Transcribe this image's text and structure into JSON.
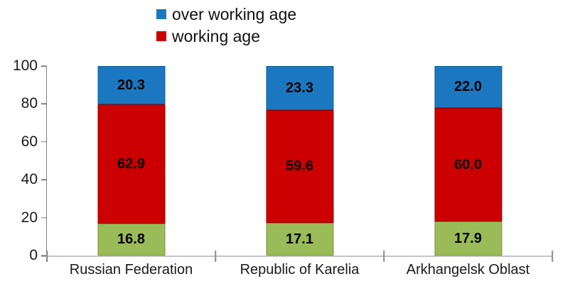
{
  "chart_data": {
    "type": "bar",
    "stacked": true,
    "title": "",
    "xlabel": "",
    "ylabel": "",
    "ylim": [
      0,
      100
    ],
    "yticks": [
      0,
      20,
      40,
      60,
      80,
      100
    ],
    "grid": false,
    "legend_position": "top",
    "categories": [
      "Russian Federation",
      "Republic of Karelia",
      "Arkhangelsk Oblast"
    ],
    "series": [
      {
        "name": "",
        "color": "#9bbb59",
        "border_color": "#77923f",
        "values": [
          16.8,
          17.1,
          17.9
        ],
        "labels": [
          "16.8",
          "17.1",
          "17.9"
        ]
      },
      {
        "name": "working age",
        "color": "#cc0000",
        "border_color": "#960000",
        "values": [
          62.9,
          59.6,
          60.0
        ],
        "labels": [
          "62.9",
          "59.6",
          "60.0"
        ]
      },
      {
        "name": "over working age",
        "color": "#1b78c0",
        "border_color": "#145a91",
        "values": [
          20.3,
          23.3,
          22.0
        ],
        "labels": [
          "20.3",
          "23.3",
          "22.0"
        ]
      }
    ],
    "legend": {
      "entries": [
        {
          "label": "over working age",
          "color": "#1b78c0"
        },
        {
          "label": "working age",
          "color": "#cc0000"
        }
      ]
    },
    "axis_color": "#7f7f7f",
    "baseline_color": "#c4c4c4",
    "value_label_color": "#000000",
    "tick_label_color": "#1a1a1a"
  }
}
